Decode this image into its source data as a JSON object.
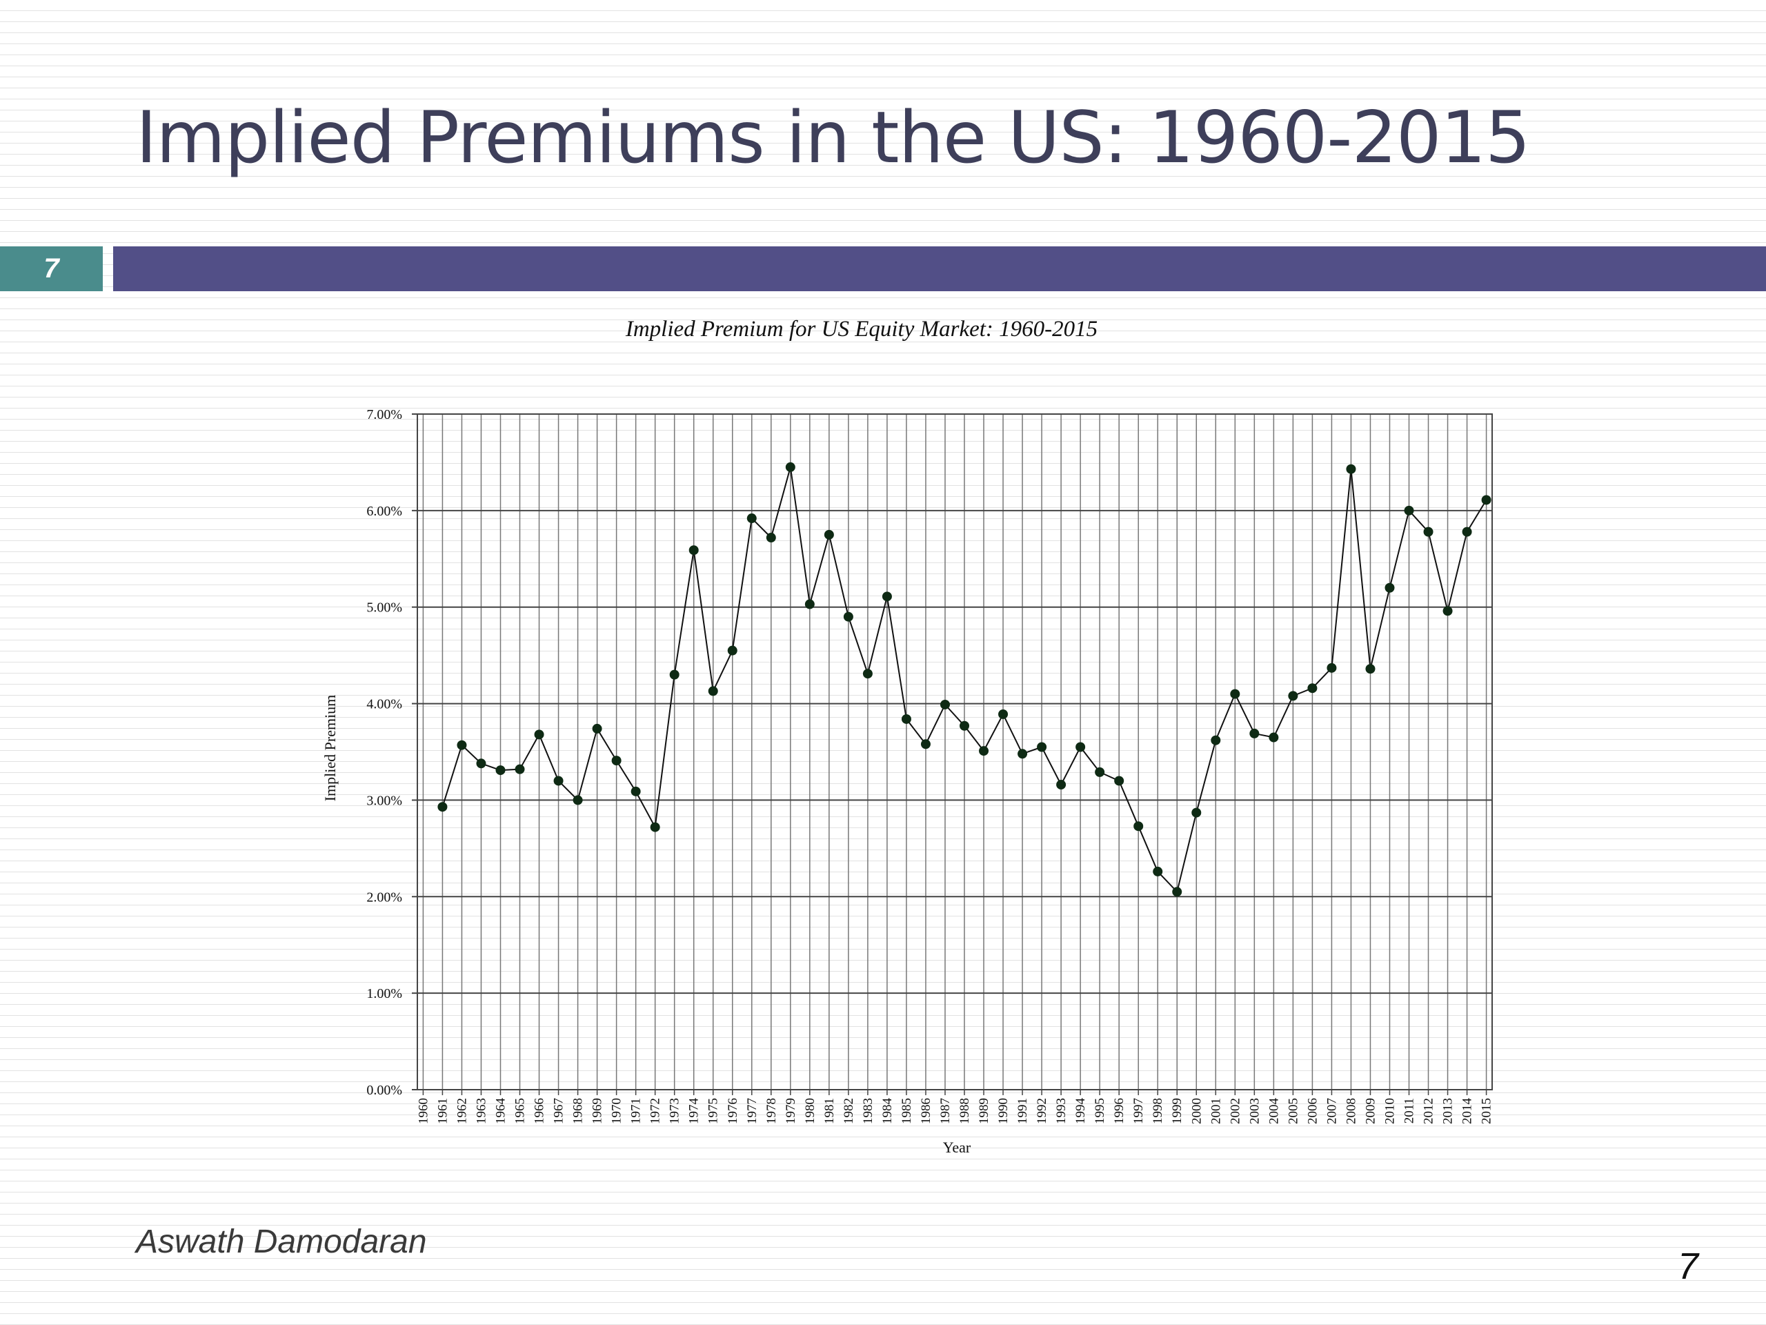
{
  "slide": {
    "title": "Implied Premiums in the US: 1960-2015",
    "slide_number_box": "7",
    "author": "Aswath Damodaran",
    "page_number": "7",
    "colors": {
      "title_text": "#3e3f5a",
      "band": "#524f87",
      "number_box": "#4a8c8c"
    }
  },
  "chart_data": {
    "type": "line",
    "title": "Implied Premium for US Equity Market:  1960-2015",
    "xlabel": "Year",
    "ylabel": "Implied Premium",
    "ylim": [
      0,
      0.07
    ],
    "yticks": [
      "0.00%",
      "1.00%",
      "2.00%",
      "3.00%",
      "4.00%",
      "5.00%",
      "6.00%",
      "7.00%"
    ],
    "grid": true,
    "legend": "none",
    "x": [
      1960,
      1961,
      1962,
      1963,
      1964,
      1965,
      1966,
      1967,
      1968,
      1969,
      1970,
      1971,
      1972,
      1973,
      1974,
      1975,
      1976,
      1977,
      1978,
      1979,
      1980,
      1981,
      1982,
      1983,
      1984,
      1985,
      1986,
      1987,
      1988,
      1989,
      1990,
      1991,
      1992,
      1993,
      1994,
      1995,
      1996,
      1997,
      1998,
      1999,
      2000,
      2001,
      2002,
      2003,
      2004,
      2005,
      2006,
      2007,
      2008,
      2009,
      2010,
      2011,
      2012,
      2013,
      2014,
      2015
    ],
    "series": [
      {
        "values": [
          null,
          0.0293,
          0.0357,
          0.0338,
          0.0331,
          0.0332,
          0.0368,
          0.032,
          0.03,
          0.0374,
          0.0341,
          0.0309,
          0.0272,
          0.043,
          0.0559,
          0.0413,
          0.0455,
          0.0592,
          0.0572,
          0.0645,
          0.0503,
          0.0575,
          0.049,
          0.0431,
          0.0511,
          0.0384,
          0.0358,
          0.0399,
          0.0377,
          0.0351,
          0.0389,
          0.0348,
          0.0355,
          0.0316,
          0.0355,
          0.0329,
          0.032,
          0.0273,
          0.0226,
          0.0205,
          0.0287,
          0.0362,
          0.041,
          0.0369,
          0.0365,
          0.0408,
          0.0416,
          0.0437,
          0.0643,
          0.0436,
          0.052,
          0.06,
          0.0578,
          0.0496,
          0.0578,
          0.0611
        ],
        "color": "#111111"
      }
    ]
  }
}
